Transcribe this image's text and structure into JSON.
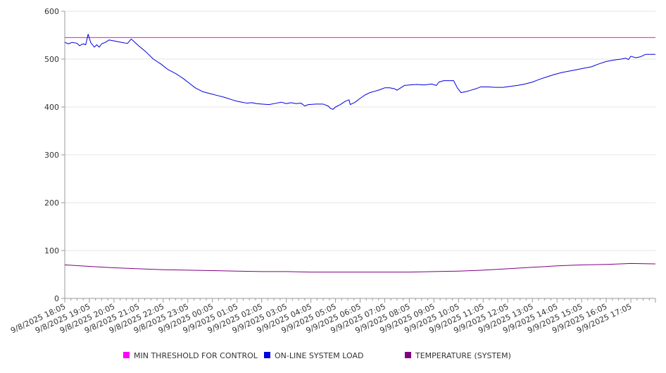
{
  "chart_data": {
    "type": "line",
    "title": "",
    "xlabel": "",
    "ylabel": "",
    "ylim": [
      0,
      600
    ],
    "yticks": [
      0,
      100,
      200,
      300,
      400,
      500,
      600
    ],
    "grid": true,
    "legend_position": "bottom",
    "x_tick_labels": [
      "9/8/2025 18:05",
      "9/8/2025 19:05",
      "9/8/2025 20:05",
      "9/8/2025 21:05",
      "9/8/2025 22:05",
      "9/8/2025 23:05",
      "9/9/2025 00:05",
      "9/9/2025 01:05",
      "9/9/2025 02:05",
      "9/9/2025 03:05",
      "9/9/2025 04:05",
      "9/9/2025 05:05",
      "9/9/2025 06:05",
      "9/9/2025 07:05",
      "9/9/2025 08:05",
      "9/9/2025 09:05",
      "9/9/2025 10:05",
      "9/9/2025 11:05",
      "9/9/2025 12:05",
      "9/9/2025 13:05",
      "9/9/2025 14:05",
      "9/9/2025 15:05",
      "9/9/2025 16:05",
      "9/9/2025 17:05"
    ],
    "x_range_hours": [
      0,
      24
    ],
    "series": [
      {
        "name": "MIN THRESHOLD FOR CONTROL",
        "color": "#ff00ff",
        "points": [
          [
            0,
            545
          ],
          [
            24,
            545
          ]
        ]
      },
      {
        "name": "ON-LINE SYSTEM LOAD",
        "color": "#0000dd",
        "points": [
          [
            0,
            535
          ],
          [
            0.15,
            532
          ],
          [
            0.3,
            535
          ],
          [
            0.5,
            533
          ],
          [
            0.6,
            528
          ],
          [
            0.75,
            532
          ],
          [
            0.85,
            530
          ],
          [
            0.95,
            552
          ],
          [
            1.05,
            535
          ],
          [
            1.2,
            525
          ],
          [
            1.3,
            530
          ],
          [
            1.4,
            525
          ],
          [
            1.5,
            532
          ],
          [
            1.65,
            535
          ],
          [
            1.8,
            540
          ],
          [
            2.0,
            538
          ],
          [
            2.2,
            536
          ],
          [
            2.4,
            534
          ],
          [
            2.55,
            533
          ],
          [
            2.7,
            542
          ],
          [
            2.85,
            535
          ],
          [
            3.0,
            528
          ],
          [
            3.3,
            515
          ],
          [
            3.6,
            500
          ],
          [
            3.9,
            490
          ],
          [
            4.2,
            478
          ],
          [
            4.5,
            470
          ],
          [
            4.8,
            460
          ],
          [
            5.05,
            450
          ],
          [
            5.3,
            440
          ],
          [
            5.6,
            432
          ],
          [
            5.9,
            428
          ],
          [
            6.2,
            424
          ],
          [
            6.5,
            420
          ],
          [
            6.8,
            415
          ],
          [
            7.0,
            412
          ],
          [
            7.2,
            410
          ],
          [
            7.4,
            408
          ],
          [
            7.6,
            409
          ],
          [
            7.8,
            407
          ],
          [
            8.0,
            406
          ],
          [
            8.3,
            405
          ],
          [
            8.6,
            408
          ],
          [
            8.8,
            410
          ],
          [
            9.0,
            407
          ],
          [
            9.2,
            409
          ],
          [
            9.4,
            407
          ],
          [
            9.6,
            408
          ],
          [
            9.75,
            402
          ],
          [
            9.9,
            405
          ],
          [
            10.2,
            406
          ],
          [
            10.5,
            406
          ],
          [
            10.7,
            402
          ],
          [
            10.8,
            397
          ],
          [
            10.9,
            395
          ],
          [
            11.0,
            400
          ],
          [
            11.2,
            405
          ],
          [
            11.4,
            412
          ],
          [
            11.55,
            415
          ],
          [
            11.6,
            405
          ],
          [
            11.8,
            410
          ],
          [
            12.0,
            418
          ],
          [
            12.2,
            425
          ],
          [
            12.4,
            430
          ],
          [
            12.6,
            433
          ],
          [
            12.8,
            436
          ],
          [
            13.0,
            440
          ],
          [
            13.2,
            440
          ],
          [
            13.4,
            438
          ],
          [
            13.5,
            435
          ],
          [
            13.65,
            440
          ],
          [
            13.8,
            445
          ],
          [
            14.0,
            446
          ],
          [
            14.3,
            447
          ],
          [
            14.6,
            446
          ],
          [
            14.9,
            448
          ],
          [
            15.1,
            445
          ],
          [
            15.2,
            452
          ],
          [
            15.4,
            455
          ],
          [
            15.6,
            455
          ],
          [
            15.8,
            455
          ],
          [
            15.95,
            440
          ],
          [
            16.1,
            430
          ],
          [
            16.3,
            432
          ],
          [
            16.5,
            435
          ],
          [
            16.7,
            438
          ],
          [
            16.9,
            442
          ],
          [
            17.2,
            442
          ],
          [
            17.5,
            441
          ],
          [
            17.8,
            441
          ],
          [
            18.1,
            443
          ],
          [
            18.4,
            445
          ],
          [
            18.7,
            448
          ],
          [
            19.0,
            452
          ],
          [
            19.3,
            458
          ],
          [
            19.6,
            463
          ],
          [
            19.9,
            468
          ],
          [
            20.2,
            472
          ],
          [
            20.5,
            475
          ],
          [
            20.8,
            478
          ],
          [
            21.1,
            481
          ],
          [
            21.4,
            484
          ],
          [
            21.7,
            490
          ],
          [
            22.0,
            495
          ],
          [
            22.3,
            498
          ],
          [
            22.6,
            500
          ],
          [
            22.8,
            502
          ],
          [
            22.9,
            499
          ],
          [
            23.0,
            506
          ],
          [
            23.2,
            503
          ],
          [
            23.4,
            505
          ],
          [
            23.6,
            510
          ],
          [
            23.8,
            510
          ],
          [
            24.0,
            510
          ]
        ]
      },
      {
        "name": "TEMPERATURE (SYSTEM)",
        "color": "#800080",
        "points": [
          [
            0,
            70
          ],
          [
            1,
            67
          ],
          [
            2,
            64
          ],
          [
            3,
            62
          ],
          [
            4,
            60
          ],
          [
            5,
            59
          ],
          [
            6,
            58
          ],
          [
            7,
            57
          ],
          [
            8,
            56
          ],
          [
            9,
            56
          ],
          [
            10,
            55
          ],
          [
            11,
            55
          ],
          [
            12,
            55
          ],
          [
            13,
            55
          ],
          [
            14,
            55
          ],
          [
            15,
            56
          ],
          [
            16,
            57
          ],
          [
            17,
            59
          ],
          [
            18,
            62
          ],
          [
            19,
            65
          ],
          [
            20,
            68
          ],
          [
            21,
            70
          ],
          [
            22,
            71
          ],
          [
            23,
            73
          ],
          [
            24,
            72
          ]
        ]
      }
    ]
  }
}
